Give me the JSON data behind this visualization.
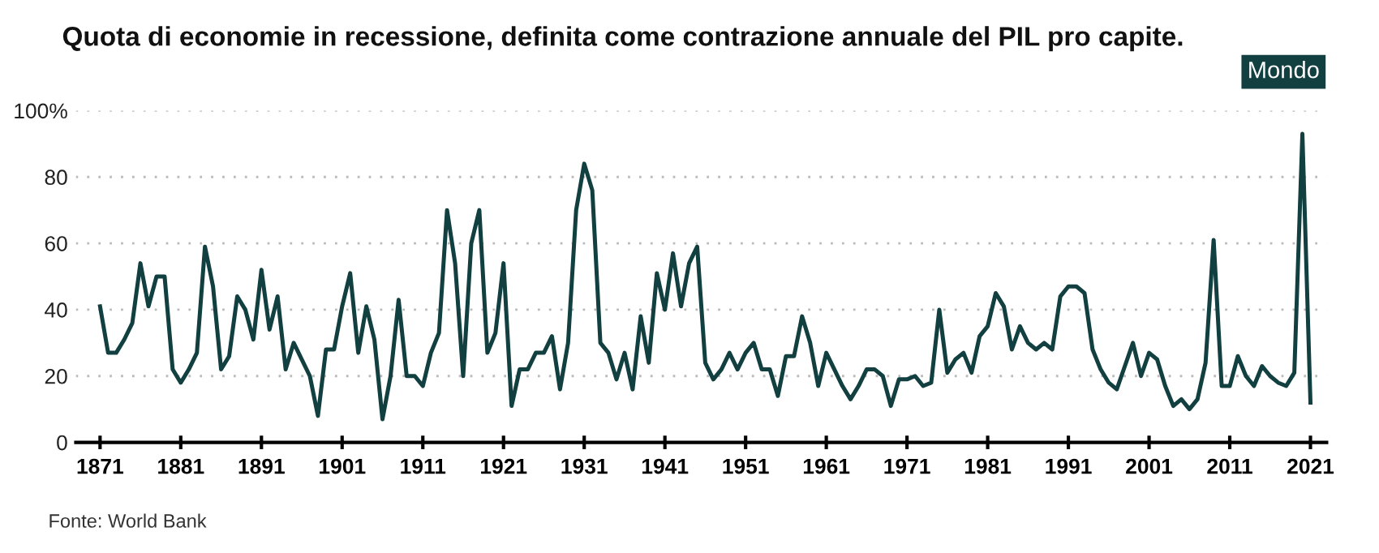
{
  "chart_data": {
    "type": "line",
    "title": "Quota di economie in recessione, definita come contrazione annuale del PIL pro capite.",
    "annotations": [
      "Fonte: World Bank"
    ],
    "x": [
      1871,
      1872,
      1873,
      1874,
      1875,
      1876,
      1877,
      1878,
      1879,
      1880,
      1881,
      1882,
      1883,
      1884,
      1885,
      1886,
      1887,
      1888,
      1889,
      1890,
      1891,
      1892,
      1893,
      1894,
      1895,
      1896,
      1897,
      1898,
      1899,
      1900,
      1901,
      1902,
      1903,
      1904,
      1905,
      1906,
      1907,
      1908,
      1909,
      1910,
      1911,
      1912,
      1913,
      1914,
      1915,
      1916,
      1917,
      1918,
      1919,
      1920,
      1921,
      1922,
      1923,
      1924,
      1925,
      1926,
      1927,
      1928,
      1929,
      1930,
      1931,
      1932,
      1933,
      1934,
      1935,
      1936,
      1937,
      1938,
      1939,
      1940,
      1941,
      1942,
      1943,
      1944,
      1945,
      1946,
      1947,
      1948,
      1949,
      1950,
      1951,
      1952,
      1953,
      1954,
      1955,
      1956,
      1957,
      1958,
      1959,
      1960,
      1961,
      1962,
      1963,
      1964,
      1965,
      1966,
      1967,
      1968,
      1969,
      1970,
      1971,
      1972,
      1973,
      1974,
      1975,
      1976,
      1977,
      1978,
      1979,
      1980,
      1981,
      1982,
      1983,
      1984,
      1985,
      1986,
      1987,
      1988,
      1989,
      1990,
      1991,
      1992,
      1993,
      1994,
      1995,
      1996,
      1997,
      1998,
      1999,
      2000,
      2001,
      2002,
      2003,
      2004,
      2005,
      2006,
      2007,
      2008,
      2009,
      2010,
      2011,
      2012,
      2013,
      2014,
      2015,
      2016,
      2017,
      2018,
      2019,
      2020,
      2021
    ],
    "series": [
      {
        "name": "Mondo",
        "color": "#123f40",
        "values": [
          41,
          27,
          27,
          31,
          36,
          54,
          41,
          50,
          50,
          22,
          18,
          22,
          27,
          59,
          47,
          22,
          26,
          44,
          40,
          31,
          52,
          34,
          44,
          22,
          30,
          25,
          20,
          8,
          28,
          28,
          41,
          51,
          27,
          41,
          31,
          7,
          20,
          43,
          20,
          20,
          17,
          27,
          33,
          70,
          54,
          20,
          60,
          70,
          27,
          33,
          54,
          11,
          22,
          22,
          27,
          27,
          32,
          16,
          30,
          70,
          84,
          76,
          30,
          27,
          19,
          27,
          16,
          38,
          24,
          51,
          40,
          57,
          41,
          54,
          59,
          24,
          19,
          22,
          27,
          22,
          27,
          30,
          22,
          22,
          14,
          26,
          26,
          38,
          30,
          17,
          27,
          22,
          17,
          13,
          17,
          22,
          22,
          20,
          11,
          19,
          19,
          20,
          17,
          18,
          40,
          21,
          25,
          27,
          21,
          32,
          35,
          45,
          41,
          28,
          35,
          30,
          28,
          30,
          28,
          44,
          47,
          47,
          45,
          28,
          22,
          18,
          16,
          23,
          30,
          20,
          27,
          25,
          17,
          11,
          13,
          10,
          13,
          24,
          61,
          17,
          17,
          26,
          20,
          17,
          23,
          20,
          18,
          17,
          21,
          93,
          12
        ]
      }
    ],
    "xlim": [
      1868,
      2023
    ],
    "xticks": [
      1871,
      1881,
      1891,
      1901,
      1911,
      1921,
      1931,
      1941,
      1951,
      1961,
      1971,
      1981,
      1991,
      2001,
      2011,
      2021
    ],
    "ylim": [
      0,
      100
    ],
    "yticks": [
      0,
      20,
      40,
      60,
      80,
      {
        "value": 100,
        "label": "100%"
      }
    ],
    "grid": "y",
    "legend": "top right",
    "line_style": "solid",
    "marker": "none"
  }
}
